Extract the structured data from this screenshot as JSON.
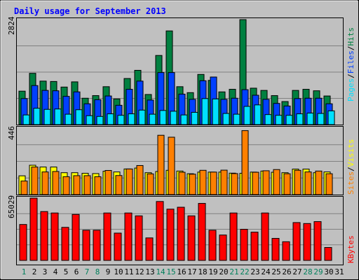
{
  "title": "Daily usage for September 2013",
  "chart_data": [
    {
      "type": "bar",
      "panel": "hits-files-pages",
      "ymax_label": "2824",
      "ylim": [
        0,
        2824
      ],
      "grid": true,
      "legend_label_parts": [
        "Pages",
        "Files",
        "Hits"
      ],
      "categories": [
        "1",
        "2",
        "3",
        "4",
        "5",
        "6",
        "7",
        "8",
        "9",
        "10",
        "11",
        "12",
        "13",
        "14",
        "15",
        "16",
        "17",
        "18",
        "19",
        "20",
        "21",
        "22",
        "23",
        "24",
        "25",
        "26",
        "27",
        "28",
        "29",
        "30",
        "31"
      ],
      "series": [
        {
          "name": "Hits",
          "color": "#008040",
          "values": [
            900,
            1380,
            1170,
            1160,
            1010,
            1150,
            710,
            780,
            1020,
            690,
            1240,
            1460,
            810,
            1860,
            2520,
            1020,
            860,
            1350,
            1190,
            880,
            950,
            2824,
            980,
            920,
            780,
            620,
            920,
            950,
            910,
            770,
            0
          ]
        },
        {
          "name": "Files",
          "color": "#0040ff",
          "values": [
            700,
            1050,
            920,
            910,
            760,
            880,
            560,
            670,
            770,
            520,
            950,
            1170,
            660,
            1400,
            1400,
            820,
            680,
            1180,
            1280,
            680,
            710,
            940,
            790,
            680,
            570,
            500,
            700,
            710,
            710,
            560,
            0
          ]
        },
        {
          "name": "Pages",
          "color": "#00e0ff",
          "values": [
            260,
            440,
            410,
            420,
            280,
            400,
            240,
            220,
            290,
            250,
            290,
            390,
            280,
            380,
            360,
            260,
            330,
            700,
            690,
            300,
            280,
            490,
            530,
            270,
            250,
            250,
            290,
            310,
            300,
            370,
            0
          ]
        }
      ]
    },
    {
      "type": "bar",
      "panel": "visits-sites",
      "ymax_label": "446",
      "ylim": [
        0,
        446
      ],
      "grid": true,
      "legend_label_parts": [
        "Sites",
        "Visits"
      ],
      "categories": [
        "1",
        "2",
        "3",
        "4",
        "5",
        "6",
        "7",
        "8",
        "9",
        "10",
        "11",
        "12",
        "13",
        "14",
        "15",
        "16",
        "17",
        "18",
        "19",
        "20",
        "21",
        "22",
        "23",
        "24",
        "25",
        "26",
        "27",
        "28",
        "29",
        "30",
        "31"
      ],
      "series": [
        {
          "name": "Visits",
          "color": "#ffff00",
          "values": [
            126,
            197,
            185,
            185,
            147,
            147,
            143,
            141,
            157,
            152,
            172,
            178,
            147,
            155,
            163,
            158,
            140,
            151,
            151,
            151,
            144,
            143,
            151,
            158,
            150,
            147,
            171,
            171,
            147,
            152,
            0
          ]
        },
        {
          "name": "Sites",
          "color": "#ff8000",
          "values": [
            91,
            185,
            152,
            155,
            120,
            127,
            127,
            120,
            162,
            128,
            172,
            195,
            139,
            398,
            385,
            150,
            137,
            163,
            151,
            164,
            141,
            429,
            150,
            160,
            168,
            140,
            163,
            152,
            158,
            140,
            0
          ]
        }
      ]
    },
    {
      "type": "bar",
      "panel": "kbytes",
      "ymax_label": "65029",
      "ylim": [
        0,
        65029
      ],
      "grid": true,
      "legend_label_parts": [
        "KBytes"
      ],
      "categories": [
        "1",
        "2",
        "3",
        "4",
        "5",
        "6",
        "7",
        "8",
        "9",
        "10",
        "11",
        "12",
        "13",
        "14",
        "15",
        "16",
        "17",
        "18",
        "19",
        "20",
        "21",
        "22",
        "23",
        "24",
        "25",
        "26",
        "27",
        "28",
        "29",
        "30",
        "31"
      ],
      "series": [
        {
          "name": "KBytes",
          "color": "#ff0000",
          "values": [
            37500,
            65029,
            51000,
            49500,
            34500,
            48000,
            31500,
            31500,
            49500,
            28500,
            49500,
            46500,
            23500,
            61500,
            53500,
            55500,
            46500,
            59500,
            31500,
            26500,
            49500,
            32500,
            29500,
            49500,
            23000,
            19500,
            39500,
            38500,
            40500,
            13500,
            0
          ]
        }
      ]
    }
  ],
  "x_labels": [
    {
      "text": "1",
      "weekend": true
    },
    {
      "text": "2",
      "weekend": false
    },
    {
      "text": "3",
      "weekend": false
    },
    {
      "text": "4",
      "weekend": false
    },
    {
      "text": "5",
      "weekend": false
    },
    {
      "text": "6",
      "weekend": false
    },
    {
      "text": "7",
      "weekend": true
    },
    {
      "text": "8",
      "weekend": true
    },
    {
      "text": "9",
      "weekend": false
    },
    {
      "text": "10",
      "weekend": false
    },
    {
      "text": "11",
      "weekend": false
    },
    {
      "text": "12",
      "weekend": false
    },
    {
      "text": "13",
      "weekend": false
    },
    {
      "text": "14",
      "weekend": true
    },
    {
      "text": "15",
      "weekend": true
    },
    {
      "text": "16",
      "weekend": false
    },
    {
      "text": "17",
      "weekend": false
    },
    {
      "text": "18",
      "weekend": false
    },
    {
      "text": "19",
      "weekend": false
    },
    {
      "text": "20",
      "weekend": false
    },
    {
      "text": "21",
      "weekend": true
    },
    {
      "text": "22",
      "weekend": true
    },
    {
      "text": "23",
      "weekend": false
    },
    {
      "text": "24",
      "weekend": false
    },
    {
      "text": "25",
      "weekend": false
    },
    {
      "text": "26",
      "weekend": false
    },
    {
      "text": "27",
      "weekend": false
    },
    {
      "text": "28",
      "weekend": true
    },
    {
      "text": "29",
      "weekend": true
    },
    {
      "text": "30",
      "weekend": false
    },
    {
      "text": "31",
      "weekend": false
    }
  ],
  "colors": {
    "background": "#c0c0c0",
    "plot": "#c0c0c0",
    "title": "#0000ff",
    "weekend_label": "#00805c",
    "weekday_label": "#000000",
    "gridline": "#808080"
  }
}
